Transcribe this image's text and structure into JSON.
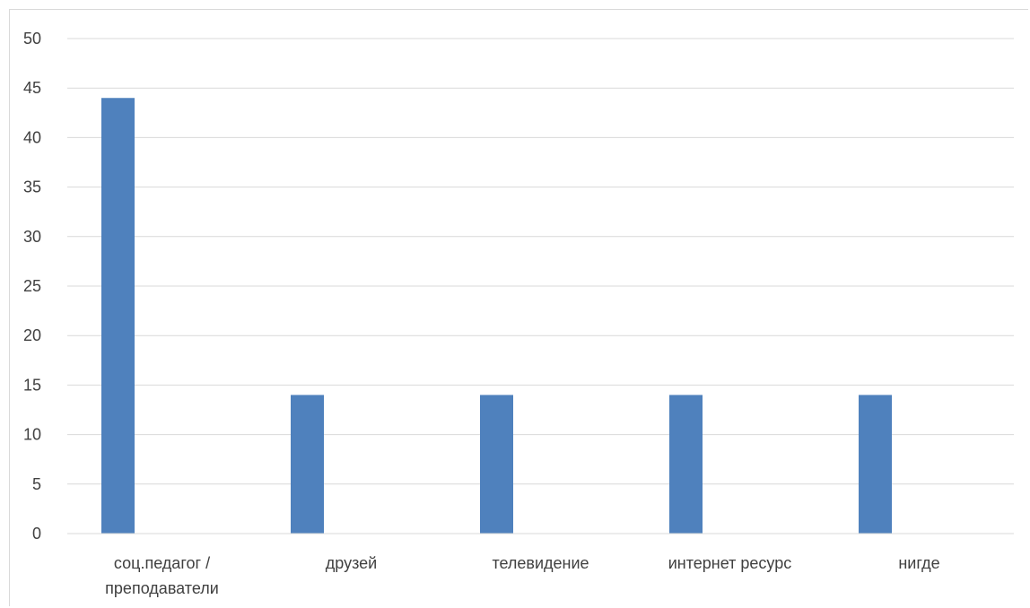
{
  "chart_data": {
    "type": "bar",
    "categories": [
      [
        "соц.педагог /",
        "преподаватели"
      ],
      [
        "друзей"
      ],
      [
        "телевидение"
      ],
      [
        "интернет ресурс"
      ],
      [
        "нигде"
      ]
    ],
    "values": [
      44,
      14,
      14,
      14,
      14
    ],
    "title": "",
    "xlabel": "",
    "ylabel": "",
    "ylim": [
      0,
      50
    ],
    "yticks": [
      0,
      5,
      10,
      15,
      20,
      25,
      30,
      35,
      40,
      45,
      50
    ],
    "grid": true,
    "legend": "none",
    "colors": {
      "bar": "#4f81bd",
      "grid": "#d9d9d9",
      "axis": "#d9d9d9",
      "text": "#404040"
    }
  }
}
